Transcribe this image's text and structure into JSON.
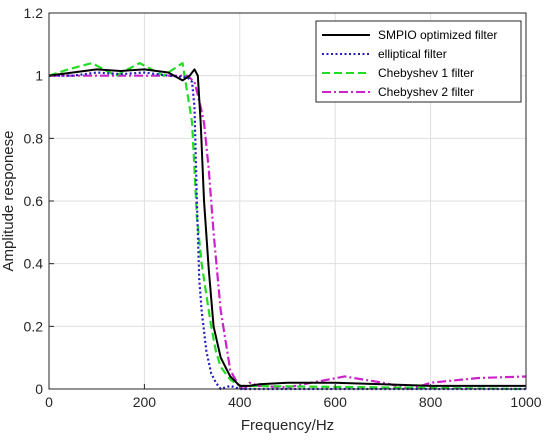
{
  "chart_data": {
    "type": "line",
    "title": "",
    "xlabel": "Frequency/Hz",
    "ylabel": "Amplitude responese",
    "xlim": [
      0,
      1000
    ],
    "ylim": [
      0,
      1.2
    ],
    "xticks": [
      0,
      200,
      400,
      600,
      800,
      1000
    ],
    "xtick_labels": [
      "0",
      "200",
      "400",
      "600",
      "800",
      "1000"
    ],
    "yticks": [
      0,
      0.2,
      0.4,
      0.6,
      0.8,
      1,
      1.2
    ],
    "ytick_labels": [
      "0",
      "0.2",
      "0.4",
      "0.6",
      "0.8",
      "1",
      "1.2"
    ],
    "grid": true,
    "legend_position": "top-right",
    "series": [
      {
        "name": "SMPIO optimized filter",
        "color": "#000000",
        "dash": "solid",
        "x": [
          0,
          50,
          100,
          150,
          200,
          250,
          280,
          295,
          305,
          312,
          318,
          325,
          335,
          345,
          360,
          380,
          400,
          420,
          440,
          500,
          600,
          700,
          800,
          900,
          1000
        ],
        "y": [
          1.0,
          1.01,
          1.02,
          1.015,
          1.02,
          1.01,
          0.985,
          1.0,
          1.02,
          1.0,
          0.85,
          0.6,
          0.38,
          0.2,
          0.1,
          0.04,
          0.01,
          0.01,
          0.015,
          0.02,
          0.02,
          0.015,
          0.01,
          0.01,
          0.01
        ]
      },
      {
        "name": "elliptical filter",
        "color": "#1f1fbf",
        "dash": "dotted",
        "x": [
          0,
          50,
          100,
          150,
          200,
          250,
          290,
          300,
          305,
          310,
          315,
          320,
          330,
          340,
          350,
          360,
          380,
          400,
          1000
        ],
        "y": [
          1.0,
          1.0,
          1.01,
          1.005,
          1.01,
          1.0,
          0.995,
          0.98,
          0.9,
          0.6,
          0.35,
          0.25,
          0.12,
          0.05,
          0.02,
          0.0,
          0.01,
          0.0,
          0.0
        ]
      },
      {
        "name": "Chebyshev 1 filter",
        "color": "#22dd22",
        "dash": "dashed",
        "x": [
          0,
          40,
          90,
          140,
          190,
          240,
          280,
          300,
          305,
          310,
          320,
          330,
          340,
          350,
          360,
          380,
          400,
          1000
        ],
        "y": [
          1.0,
          1.02,
          1.04,
          1.0,
          1.04,
          1.0,
          1.04,
          0.85,
          0.7,
          0.55,
          0.4,
          0.3,
          0.2,
          0.12,
          0.07,
          0.03,
          0.01,
          0.0
        ]
      },
      {
        "name": "Chebyshev 2 filter",
        "color": "#cc22cc",
        "dash": "dashdot",
        "x": [
          0,
          100,
          200,
          290,
          305,
          310,
          318,
          325,
          335,
          345,
          360,
          380,
          400,
          410,
          420,
          440,
          500,
          550,
          620,
          700,
          760,
          800,
          900,
          1000
        ],
        "y": [
          1.0,
          1.0,
          1.0,
          1.0,
          0.98,
          0.95,
          0.9,
          0.85,
          0.7,
          0.5,
          0.25,
          0.06,
          0.005,
          0.0,
          0.02,
          0.01,
          0.005,
          0.02,
          0.04,
          0.02,
          0.0,
          0.02,
          0.035,
          0.04
        ]
      }
    ]
  }
}
